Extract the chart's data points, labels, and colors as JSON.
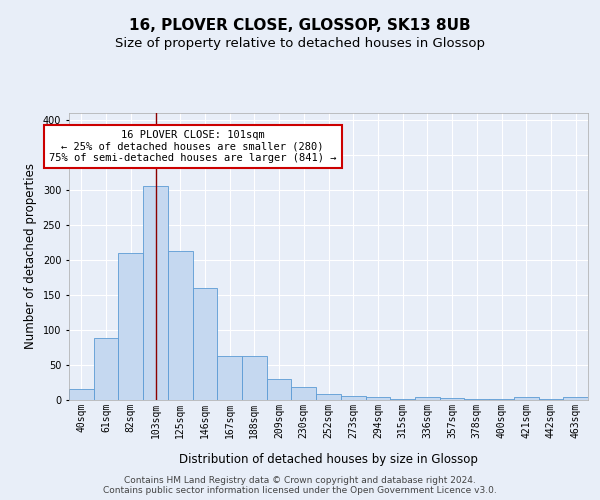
{
  "title": "16, PLOVER CLOSE, GLOSSOP, SK13 8UB",
  "subtitle": "Size of property relative to detached houses in Glossop",
  "xlabel": "Distribution of detached houses by size in Glossop",
  "ylabel": "Number of detached properties",
  "categories": [
    "40sqm",
    "61sqm",
    "82sqm",
    "103sqm",
    "125sqm",
    "146sqm",
    "167sqm",
    "188sqm",
    "209sqm",
    "230sqm",
    "252sqm",
    "273sqm",
    "294sqm",
    "315sqm",
    "336sqm",
    "357sqm",
    "378sqm",
    "400sqm",
    "421sqm",
    "442sqm",
    "463sqm"
  ],
  "values": [
    15,
    88,
    210,
    305,
    213,
    160,
    63,
    63,
    30,
    19,
    9,
    6,
    4,
    2,
    4,
    3,
    2,
    1,
    4,
    1,
    4
  ],
  "bar_color": "#c5d8f0",
  "bar_edge_color": "#5b9bd5",
  "vline_x": 3.0,
  "vline_color": "#8b0000",
  "annotation_text": "16 PLOVER CLOSE: 101sqm\n← 25% of detached houses are smaller (280)\n75% of semi-detached houses are larger (841) →",
  "annotation_box_color": "white",
  "annotation_box_edge_color": "#cc0000",
  "ylim": [
    0,
    410
  ],
  "yticks": [
    0,
    50,
    100,
    150,
    200,
    250,
    300,
    350,
    400
  ],
  "footer_text": "Contains HM Land Registry data © Crown copyright and database right 2024.\nContains public sector information licensed under the Open Government Licence v3.0.",
  "bg_color": "#e8eef8",
  "plot_bg_color": "#e8eef8",
  "grid_color": "white",
  "title_fontsize": 11,
  "subtitle_fontsize": 9.5,
  "xlabel_fontsize": 8.5,
  "ylabel_fontsize": 8.5,
  "tick_fontsize": 7,
  "footer_fontsize": 6.5,
  "ann_fontsize": 7.5
}
